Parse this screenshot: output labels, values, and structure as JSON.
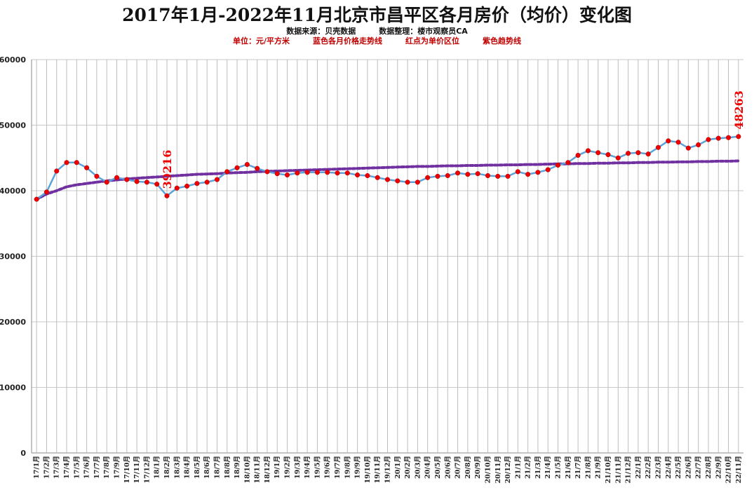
{
  "chart_data": {
    "type": "line",
    "title": "2017年1月-2022年11月北京市昌平区各月房价（均价）变化图",
    "subtitle_1": "数据来源：贝壳数据　　　数据整理：楼市观察员CA",
    "subtitle_2": "单位：元/平方米　　　蓝色各月价格走势线　　　红点为单价区位　　　紫色趋势线",
    "xlabel": "",
    "ylabel": "",
    "ylim": [
      0,
      60000
    ],
    "yticks": [
      0,
      10000,
      20000,
      30000,
      40000,
      50000,
      60000
    ],
    "grid": true,
    "colors": {
      "price_line": "#5ba3d9",
      "price_dot": "#ee0000",
      "trend_line": "#7030a0",
      "annotation": "#ee0000",
      "gridline": "#c8c8c8"
    },
    "categories": [
      "17/1月",
      "17/2月",
      "17/3月",
      "17/4月",
      "17/5月",
      "17/6月",
      "17/7月",
      "17/8月",
      "17/9月",
      "17/10月",
      "17/11月",
      "17/12月",
      "18/1月",
      "18/2月",
      "18/3月",
      "18/4月",
      "18/5月",
      "18/6月",
      "18/7月",
      "18/8月",
      "18/9月",
      "18/10月",
      "18/11月",
      "18/12月",
      "19/1月",
      "19/2月",
      "19/3月",
      "19/4月",
      "19/5月",
      "19/6月",
      "19/7月",
      "19/8月",
      "19/9月",
      "19/10月",
      "19/11月",
      "19/12月",
      "20/1月",
      "20/2月",
      "20/3月",
      "20/4月",
      "20/5月",
      "20/6月",
      "20/7月",
      "20/8月",
      "20/9月",
      "20/10月",
      "20/11月",
      "20/12月",
      "21/1月",
      "21/2月",
      "21/3月",
      "21/4月",
      "21/5月",
      "21/6月",
      "21/7月",
      "21/8月",
      "21/9月",
      "21/10月",
      "21/11月",
      "21/12月",
      "22/1月",
      "22/2月",
      "22/3月",
      "22/4月",
      "22/5月",
      "22/6月",
      "22/7月",
      "22/8月",
      "22/9月",
      "22/10月",
      "22/11月"
    ],
    "series": [
      {
        "values": [
          38700,
          39800,
          43000,
          44300,
          44300,
          43500,
          42200,
          41300,
          42000,
          41700,
          41400,
          41300,
          41000,
          39216,
          40400,
          40700,
          41100,
          41300,
          41700,
          42900,
          43500,
          44000,
          43400,
          42900,
          42600,
          42400,
          42700,
          42800,
          42800,
          42800,
          42700,
          42700,
          42400,
          42300,
          42000,
          41700,
          41500,
          41300,
          41300,
          42000,
          42200,
          42300,
          42700,
          42500,
          42600,
          42300,
          42200,
          42200,
          42900,
          42500,
          42800,
          43200,
          43900,
          44300,
          45400,
          46100,
          45800,
          45500,
          45000,
          45700,
          45800,
          45600,
          46600,
          47600,
          47400,
          46500,
          47000,
          47800,
          48000,
          48100,
          48263
        ]
      }
    ],
    "trend": [
      38700,
      39500,
      40000,
      40600,
      40900,
      41100,
      41300,
      41500,
      41650,
      41800,
      41900,
      42000,
      42100,
      42200,
      42300,
      42400,
      42500,
      42550,
      42600,
      42700,
      42750,
      42800,
      42900,
      42950,
      43000,
      43050,
      43100,
      43150,
      43200,
      43250,
      43300,
      43350,
      43400,
      43450,
      43500,
      43550,
      43600,
      43650,
      43700,
      43700,
      43750,
      43800,
      43800,
      43850,
      43850,
      43900,
      43900,
      43950,
      43950,
      44000,
      44000,
      44050,
      44100,
      44100,
      44150,
      44150,
      44200,
      44200,
      44250,
      44250,
      44300,
      44300,
      44350,
      44350,
      44400,
      44400,
      44450,
      44450,
      44500,
      44500,
      44550
    ],
    "annotations": [
      {
        "label": "39216",
        "index": 13
      },
      {
        "label": "48263",
        "index": 70
      }
    ]
  }
}
